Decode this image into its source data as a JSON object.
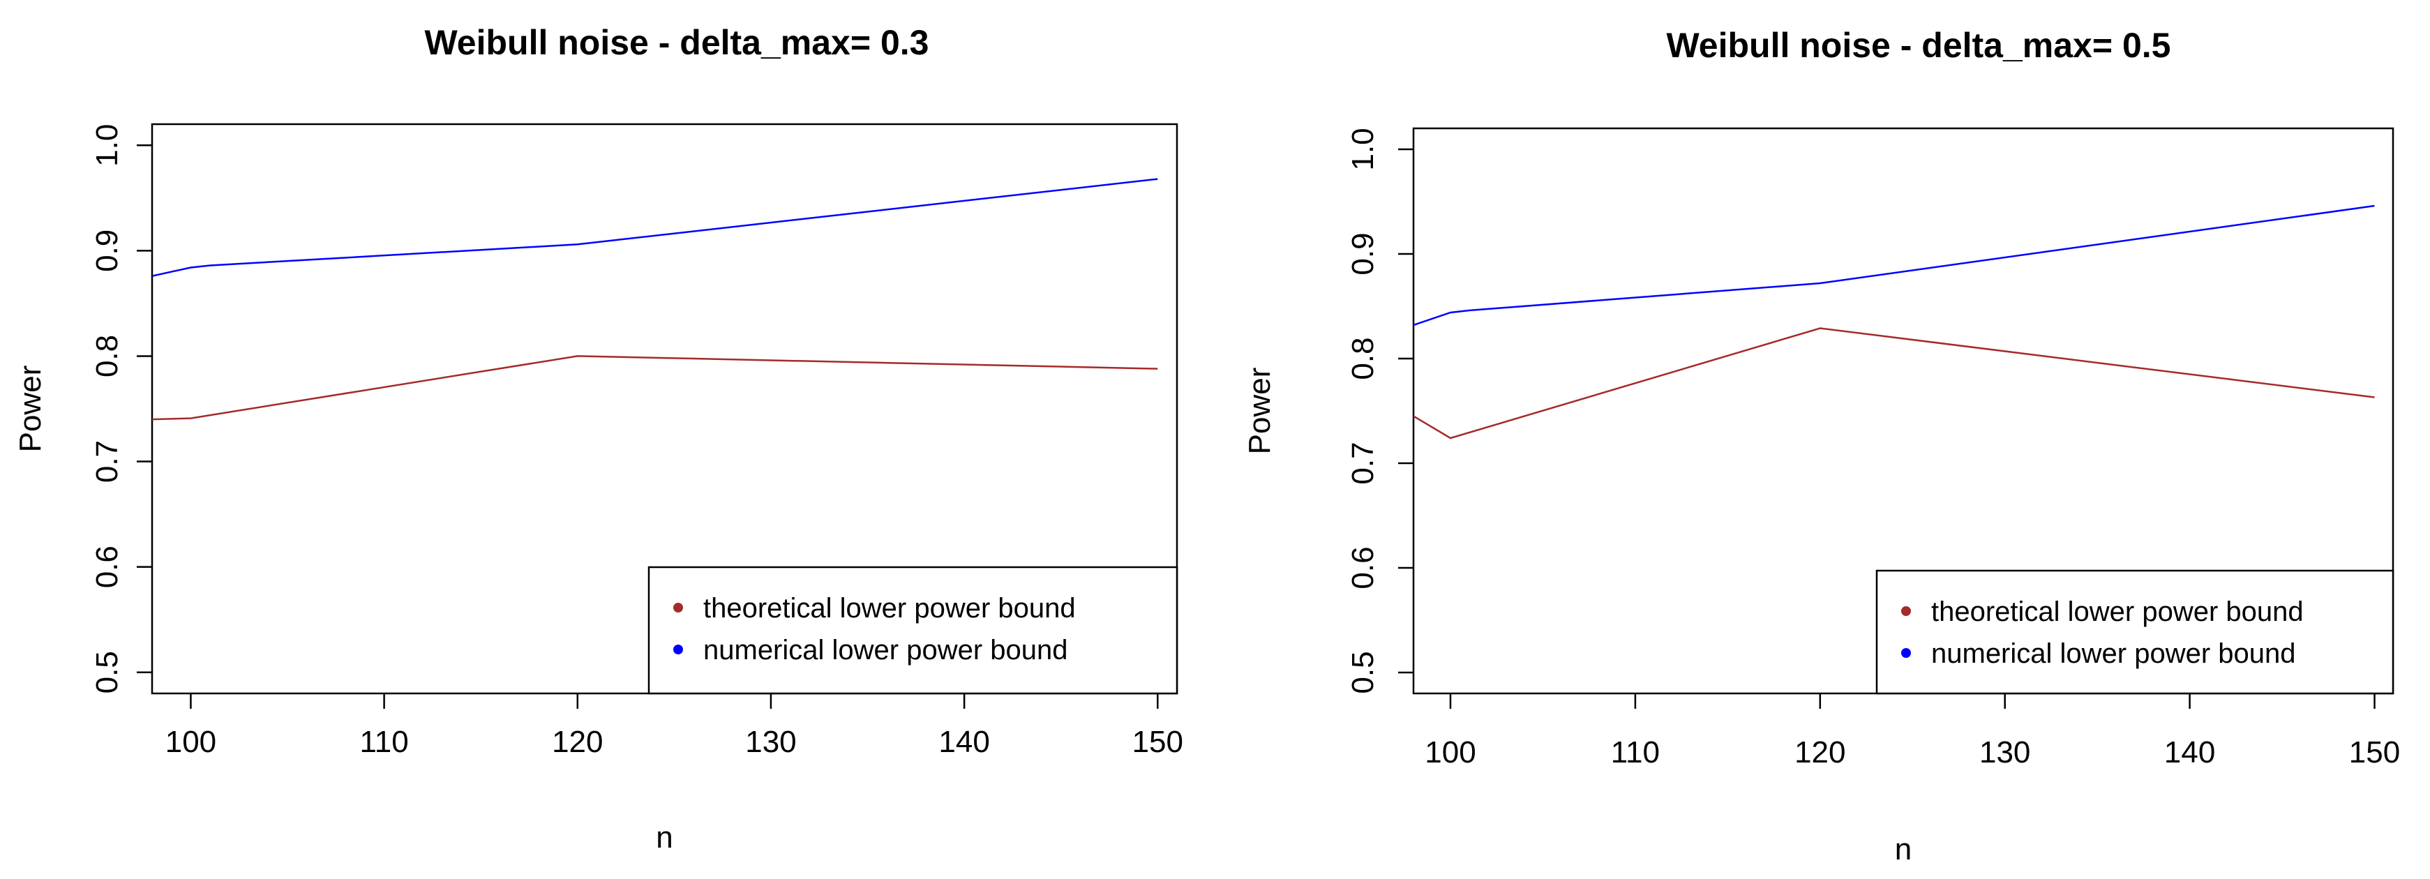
{
  "chart_data": [
    {
      "type": "line",
      "title": "Weibull noise - delta_max= 0.3",
      "xlabel": "n",
      "ylabel": "Power",
      "xlim": [
        98,
        151
      ],
      "ylim": [
        0.48,
        1.02
      ],
      "xticks": [
        "100",
        "110",
        "120",
        "130",
        "140",
        "150"
      ],
      "yticks": [
        "0.5",
        "0.6",
        "0.7",
        "0.8",
        "0.9",
        "1.0"
      ],
      "grid": false,
      "legend_position": "bottom-right",
      "series": [
        {
          "name": "theoretical lower power bound",
          "color": "#a52a2a",
          "x": [
            98,
            100,
            101,
            120,
            150
          ],
          "y": [
            0.74,
            0.741,
            0.744,
            0.8,
            0.788
          ]
        },
        {
          "name": "numerical lower power bound",
          "color": "#0000ff",
          "x": [
            98,
            100,
            101,
            120,
            150
          ],
          "y": [
            0.876,
            0.884,
            0.886,
            0.906,
            0.968
          ]
        }
      ]
    },
    {
      "type": "line",
      "title": "Weibull noise - delta_max= 0.5",
      "xlabel": "n",
      "ylabel": "Power",
      "xlim": [
        98,
        151
      ],
      "ylim": [
        0.48,
        1.02
      ],
      "xticks": [
        "100",
        "110",
        "120",
        "130",
        "140",
        "150"
      ],
      "yticks": [
        "0.5",
        "0.6",
        "0.7",
        "0.8",
        "0.9",
        "1.0"
      ],
      "grid": false,
      "legend_position": "bottom-right",
      "series": [
        {
          "name": "theoretical lower power bound",
          "color": "#a52a2a",
          "x": [
            98,
            100,
            120,
            150
          ],
          "y": [
            0.745,
            0.724,
            0.829,
            0.763
          ]
        },
        {
          "name": "numerical lower power bound",
          "color": "#0000ff",
          "x": [
            98,
            100,
            101,
            120,
            150
          ],
          "y": [
            0.832,
            0.844,
            0.846,
            0.872,
            0.946
          ]
        }
      ]
    }
  ]
}
